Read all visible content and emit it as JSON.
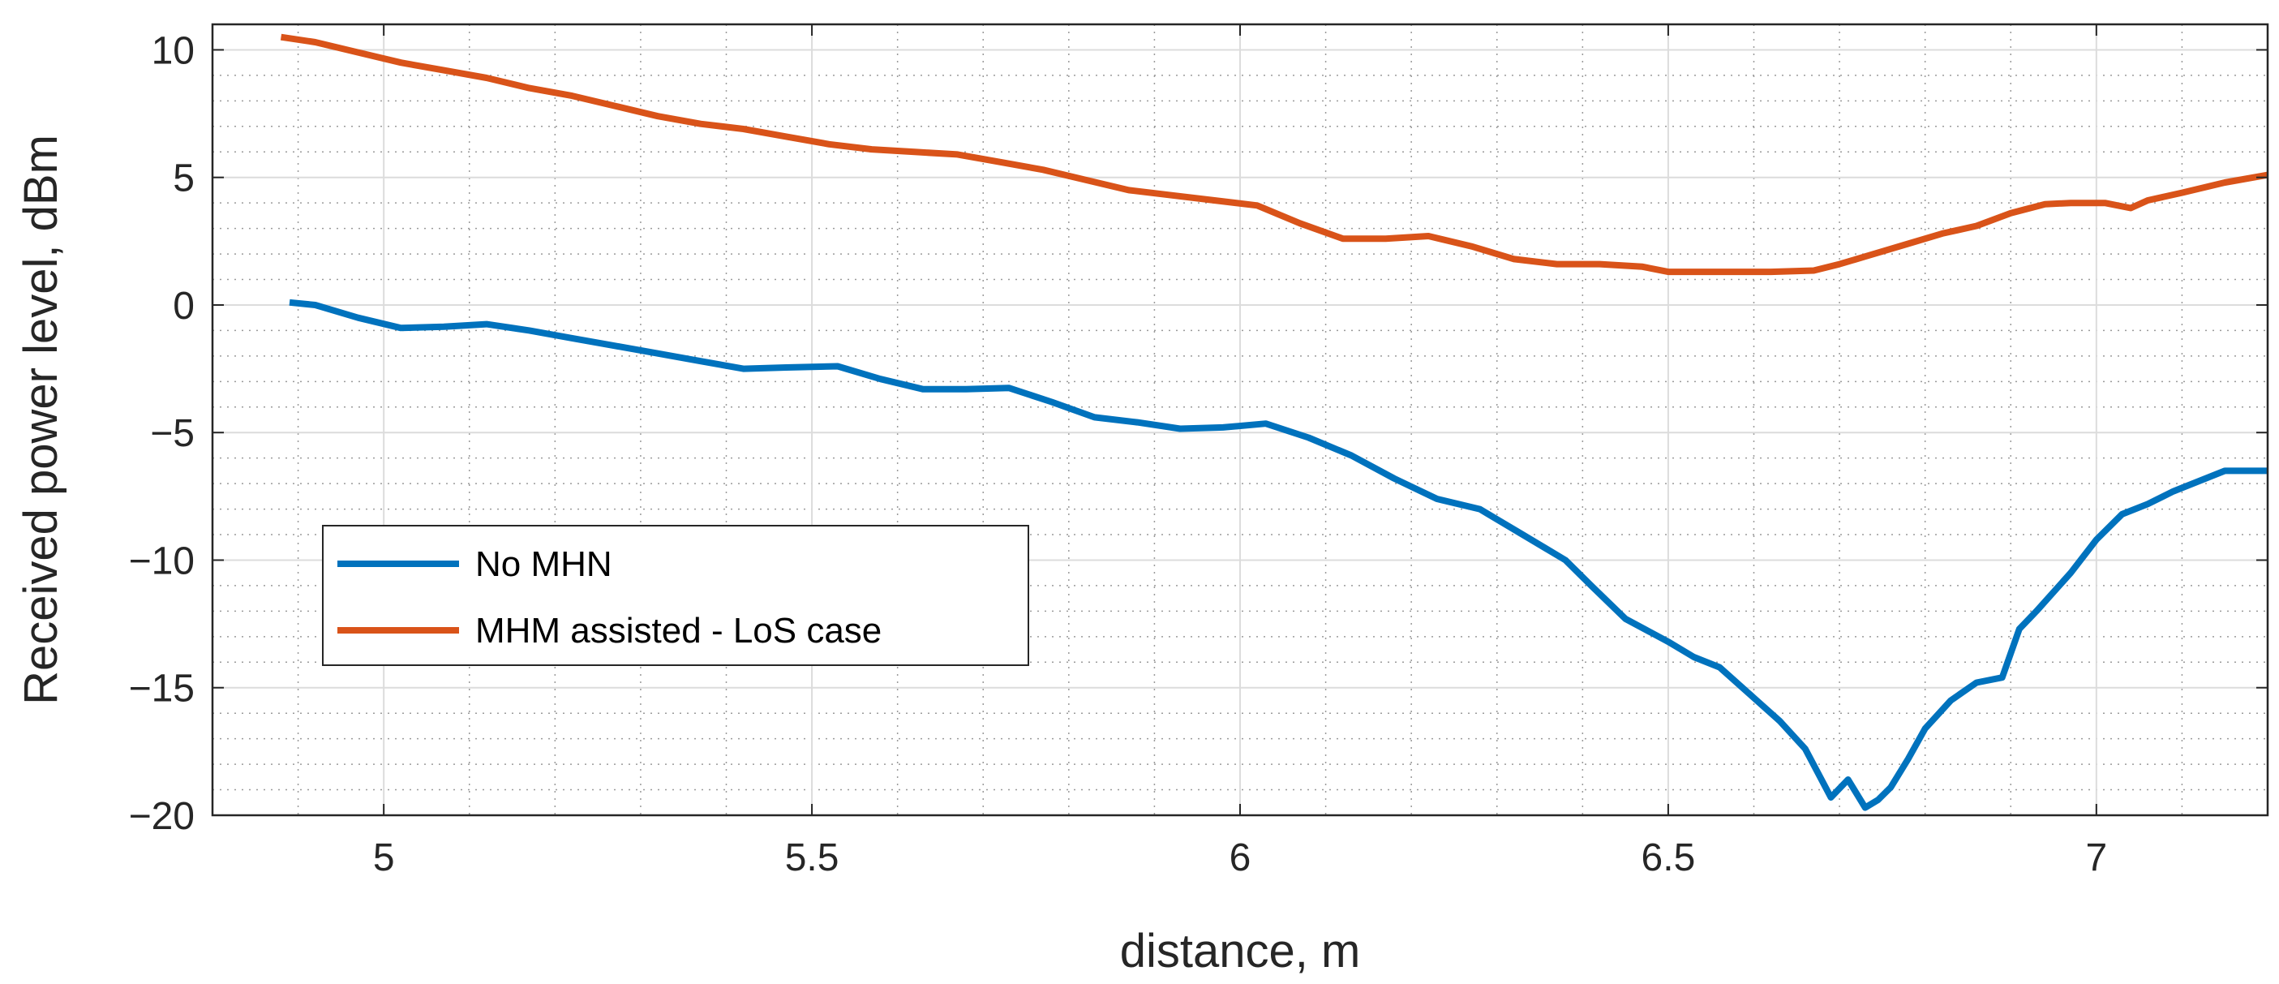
{
  "chart_data": {
    "type": "line",
    "title": "",
    "xlabel": "distance, m",
    "ylabel": "Received power level, dBm",
    "xlim": [
      4.8,
      7.2
    ],
    "ylim": [
      -20,
      11
    ],
    "xticks": [
      5,
      5.5,
      6,
      6.5,
      7
    ],
    "xtick_labels": [
      "5",
      "5.5",
      "6",
      "6.5",
      "7"
    ],
    "yticks": [
      -20,
      -15,
      -10,
      -5,
      0,
      5,
      10
    ],
    "ytick_labels": [
      "−20",
      "−15",
      "−10",
      "−5",
      "0",
      "5",
      "10"
    ],
    "grid": true,
    "minor_grid": true,
    "legend_location": "lower-left",
    "series": [
      {
        "name": "No MHN",
        "color": "#0072BD",
        "x": [
          4.89,
          4.92,
          4.97,
          5.02,
          5.07,
          5.12,
          5.17,
          5.22,
          5.27,
          5.32,
          5.37,
          5.42,
          5.47,
          5.53,
          5.58,
          5.63,
          5.68,
          5.73,
          5.78,
          5.83,
          5.88,
          5.93,
          5.98,
          6.03,
          6.08,
          6.13,
          6.18,
          6.23,
          6.28,
          6.33,
          6.38,
          6.41,
          6.45,
          6.5,
          6.53,
          6.56,
          6.6,
          6.63,
          6.66,
          6.69,
          6.71,
          6.73,
          6.745,
          6.76,
          6.78,
          6.8,
          6.83,
          6.86,
          6.89,
          6.91,
          6.93,
          6.97,
          7.0,
          7.03,
          7.06,
          7.09,
          7.12,
          7.15,
          7.2
        ],
        "y": [
          0.1,
          0.0,
          -0.5,
          -0.9,
          -0.85,
          -0.75,
          -1.0,
          -1.3,
          -1.6,
          -1.9,
          -2.2,
          -2.5,
          -2.45,
          -2.4,
          -2.9,
          -3.3,
          -3.3,
          -3.25,
          -3.8,
          -4.4,
          -4.6,
          -4.85,
          -4.8,
          -4.65,
          -5.2,
          -5.9,
          -6.8,
          -7.6,
          -8.0,
          -9.0,
          -10.0,
          -11.0,
          -12.3,
          -13.2,
          -13.8,
          -14.2,
          -15.4,
          -16.3,
          -17.4,
          -19.3,
          -18.6,
          -19.7,
          -19.4,
          -18.9,
          -17.8,
          -16.6,
          -15.5,
          -14.8,
          -14.6,
          -12.7,
          -12.0,
          -10.5,
          -9.2,
          -8.2,
          -7.8,
          -7.3,
          -6.9,
          -6.5,
          -6.5
        ]
      },
      {
        "name": "MHM assisted - LoS case",
        "color": "#D95319",
        "x": [
          4.88,
          4.92,
          4.97,
          5.02,
          5.07,
          5.12,
          5.17,
          5.22,
          5.27,
          5.32,
          5.37,
          5.42,
          5.47,
          5.52,
          5.57,
          5.62,
          5.67,
          5.72,
          5.77,
          5.82,
          5.87,
          5.92,
          5.97,
          6.02,
          6.07,
          6.12,
          6.17,
          6.22,
          6.27,
          6.32,
          6.37,
          6.42,
          6.47,
          6.5,
          6.53,
          6.57,
          6.62,
          6.67,
          6.7,
          6.73,
          6.78,
          6.82,
          6.86,
          6.9,
          6.94,
          6.97,
          7.01,
          7.04,
          7.06,
          7.1,
          7.15,
          7.2
        ],
        "y": [
          10.5,
          10.3,
          9.9,
          9.5,
          9.2,
          8.9,
          8.5,
          8.2,
          7.8,
          7.4,
          7.1,
          6.9,
          6.6,
          6.3,
          6.1,
          6.0,
          5.9,
          5.6,
          5.3,
          4.9,
          4.5,
          4.3,
          4.1,
          3.9,
          3.2,
          2.6,
          2.6,
          2.7,
          2.3,
          1.8,
          1.6,
          1.6,
          1.5,
          1.3,
          1.3,
          1.3,
          1.3,
          1.35,
          1.6,
          1.9,
          2.4,
          2.8,
          3.1,
          3.6,
          3.95,
          4.0,
          4.0,
          3.8,
          4.1,
          4.4,
          4.8,
          5.1
        ]
      }
    ]
  }
}
